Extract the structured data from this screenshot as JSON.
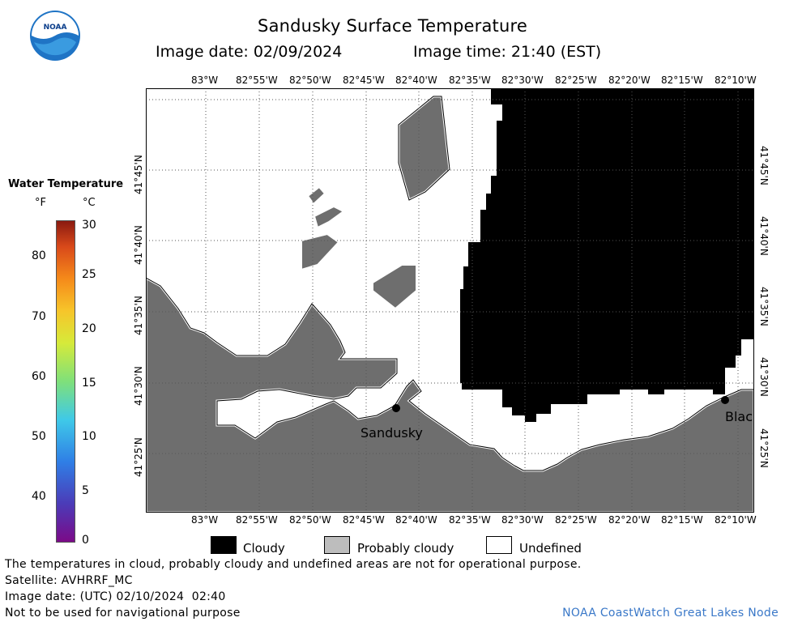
{
  "header": {
    "title": "Sandusky Surface Temperature",
    "image_date": "Image date: 02/09/2024",
    "image_time": "Image time: 21:40 (EST)"
  },
  "logo": {
    "text": "NOAA"
  },
  "color_scale": {
    "title": "Water Temperature",
    "unit_f": "°F",
    "unit_c": "°C",
    "f_ticks": [
      "80",
      "70",
      "60",
      "50",
      "40"
    ],
    "c_ticks": [
      "30",
      "25",
      "20",
      "15",
      "10",
      "5",
      "0"
    ],
    "range_c": [
      0,
      30
    ]
  },
  "map": {
    "lon_labels": [
      "83°W",
      "82°55'W",
      "82°50'W",
      "82°45'W",
      "82°40'W",
      "82°35'W",
      "82°30'W",
      "82°25'W",
      "82°20'W",
      "82°15'W",
      "82°10'W"
    ],
    "lat_labels": [
      "41°45'N",
      "41°40'N",
      "41°35'N",
      "41°30'N",
      "41°25'N"
    ],
    "cities": [
      {
        "name": "Sandusky"
      },
      {
        "name": "Blac"
      }
    ],
    "colors": {
      "land": "#6e6e6e",
      "cloudy": "#000000",
      "probably_cloudy": "#bdbdbd",
      "undefined": "#ffffff"
    }
  },
  "map_key": {
    "cloudy": "Cloudy",
    "probably_cloudy": "Probably cloudy",
    "undefined": "Undefined"
  },
  "footer": {
    "disclaimer": "The temperatures in cloud, probably cloudy and undefined areas are not for operational purpose.",
    "satellite": "Satellite: AVHRRF_MC",
    "utc_date": "Image date: (UTC) 02/10/2024  02:40",
    "nav_warning": "Not to be used for navigational purpose",
    "credit": "NOAA CoastWatch Great Lakes Node"
  }
}
